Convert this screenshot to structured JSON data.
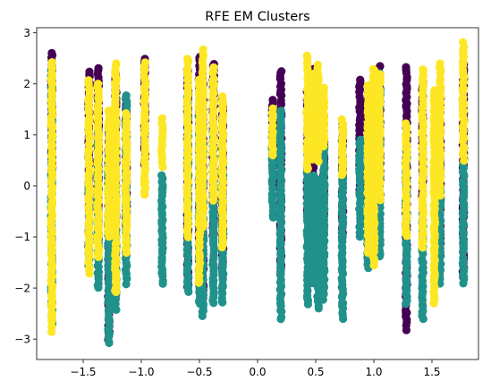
{
  "chart_data": {
    "type": "scatter",
    "title": "RFE EM Clusters",
    "xlabel": "",
    "ylabel": "",
    "xlim": [
      -1.9,
      1.9
    ],
    "ylim": [
      -3.4,
      3.1
    ],
    "xticks": [
      -1.5,
      -1.0,
      -0.5,
      0.0,
      0.5,
      1.0,
      1.5
    ],
    "xtick_labels": [
      "−1.5",
      "−1.0",
      "−0.5",
      "0.0",
      "0.5",
      "1.0",
      "1.5"
    ],
    "yticks": [
      -3,
      -2,
      -1,
      0,
      1,
      2,
      3
    ],
    "ytick_labels": [
      "−3",
      "−2",
      "−1",
      "0",
      "1",
      "2",
      "3"
    ],
    "grid": false,
    "legend": "none",
    "cluster_colors": {
      "0": "#440154",
      "1": "#21918c",
      "2": "#fde725"
    },
    "x_columns": [
      -1.77,
      -1.45,
      -1.37,
      -1.28,
      -1.22,
      -1.13,
      -0.97,
      -0.82,
      -0.6,
      -0.5,
      -0.47,
      -0.38,
      -0.3,
      0.13,
      0.2,
      0.43,
      0.48,
      0.52,
      0.57,
      0.73,
      0.88,
      0.95,
      1.0,
      1.05,
      1.28,
      1.42,
      1.52,
      1.57,
      1.77
    ],
    "series": [
      {
        "cluster": 0,
        "segments": [
          [
            -1.77,
            0.3,
            2.62
          ],
          [
            -1.45,
            -0.5,
            2.25
          ],
          [
            -1.37,
            -0.5,
            2.3
          ],
          [
            -1.28,
            -3.0,
            1.2
          ],
          [
            -1.22,
            -1.5,
            2.2
          ],
          [
            -1.13,
            -0.8,
            1.6
          ],
          [
            -0.97,
            0.4,
            2.5
          ],
          [
            -0.6,
            -2.0,
            2.3
          ],
          [
            -0.5,
            -1.6,
            2.55
          ],
          [
            -0.47,
            -2.2,
            2.2
          ],
          [
            -0.38,
            -1.0,
            2.4
          ],
          [
            -0.3,
            -1.8,
            1.7
          ],
          [
            0.13,
            0.0,
            1.7
          ],
          [
            0.2,
            -1.7,
            2.25
          ],
          [
            0.43,
            -0.5,
            1.9
          ],
          [
            0.48,
            -0.2,
            2.3
          ],
          [
            0.57,
            -0.6,
            1.4
          ],
          [
            0.73,
            -1.0,
            1.2
          ],
          [
            0.88,
            -0.2,
            2.1
          ],
          [
            0.95,
            -0.8,
            1.8
          ],
          [
            1.05,
            -0.3,
            2.35
          ],
          [
            1.28,
            -2.8,
            2.3
          ],
          [
            1.42,
            -0.2,
            2.0
          ],
          [
            1.57,
            -1.1,
            1.7
          ],
          [
            1.77,
            -1.8,
            2.4
          ]
        ]
      },
      {
        "cluster": 1,
        "segments": [
          [
            -1.77,
            -2.7,
            2.3
          ],
          [
            -1.45,
            -1.6,
            0.2
          ],
          [
            -1.37,
            -2.0,
            1.1
          ],
          [
            -1.28,
            -3.1,
            0.5
          ],
          [
            -1.22,
            -2.4,
            0.6
          ],
          [
            -1.13,
            -1.9,
            1.8
          ],
          [
            -0.82,
            -1.9,
            0.2
          ],
          [
            -0.6,
            -2.1,
            1.8
          ],
          [
            -0.5,
            -2.3,
            1.5
          ],
          [
            -0.47,
            -2.55,
            0.8
          ],
          [
            -0.38,
            -2.3,
            1.2
          ],
          [
            -0.3,
            -2.3,
            0.4
          ],
          [
            0.13,
            -0.6,
            1.0
          ],
          [
            0.2,
            -2.6,
            1.5
          ],
          [
            0.43,
            -2.3,
            0.3
          ],
          [
            0.48,
            -1.9,
            0.2
          ],
          [
            0.52,
            -2.4,
            0.1
          ],
          [
            0.57,
            -2.2,
            0.9
          ],
          [
            0.73,
            -2.6,
            0.3
          ],
          [
            0.88,
            -1.0,
            0.9
          ],
          [
            0.95,
            -1.6,
            1.0
          ],
          [
            1.0,
            -0.8,
            1.6
          ],
          [
            1.05,
            -1.4,
            2.2
          ],
          [
            1.28,
            -2.3,
            0.7
          ],
          [
            1.42,
            -2.6,
            -0.4
          ],
          [
            1.57,
            -1.9,
            0.7
          ],
          [
            1.77,
            -1.9,
            0.4
          ]
        ]
      },
      {
        "cluster": 2,
        "segments": [
          [
            -1.77,
            -2.85,
            2.4
          ],
          [
            -1.45,
            -1.7,
            2.1
          ],
          [
            -1.37,
            -1.4,
            2.0
          ],
          [
            -1.28,
            -1.0,
            1.5
          ],
          [
            -1.22,
            -2.1,
            2.4
          ],
          [
            -1.13,
            -1.3,
            1.4
          ],
          [
            -0.97,
            -0.15,
            2.4
          ],
          [
            -0.82,
            0.4,
            1.3
          ],
          [
            -0.6,
            -1.0,
            2.5
          ],
          [
            -0.5,
            -1.9,
            2.1
          ],
          [
            -0.47,
            -0.8,
            2.65
          ],
          [
            -0.38,
            -0.3,
            2.3
          ],
          [
            -0.3,
            -1.2,
            1.75
          ],
          [
            0.13,
            0.6,
            1.5
          ],
          [
            0.43,
            0.3,
            2.55
          ],
          [
            0.48,
            0.5,
            2.2
          ],
          [
            0.52,
            0.5,
            2.35
          ],
          [
            0.57,
            0.8,
            1.9
          ],
          [
            0.73,
            0.2,
            1.3
          ],
          [
            0.95,
            -1.3,
            2.0
          ],
          [
            1.0,
            -1.55,
            2.3
          ],
          [
            1.05,
            -0.3,
            2.2
          ],
          [
            1.28,
            -1.0,
            1.2
          ],
          [
            1.42,
            -1.2,
            2.3
          ],
          [
            1.52,
            -2.3,
            1.9
          ],
          [
            1.57,
            -0.2,
            2.4
          ],
          [
            1.77,
            0.5,
            2.8
          ]
        ]
      }
    ]
  }
}
